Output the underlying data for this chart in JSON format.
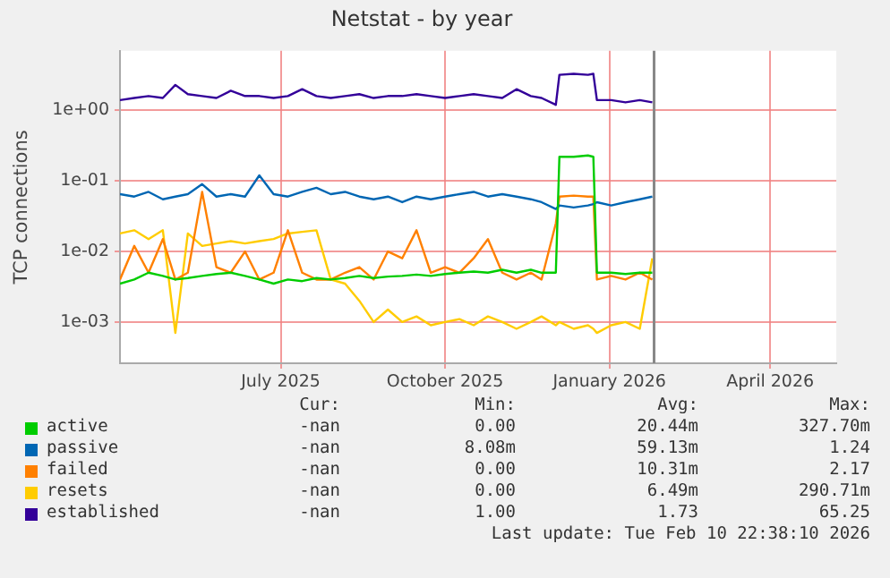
{
  "chart_data": {
    "type": "line",
    "title": "Netstat - by year",
    "ylabel": "TCP connections",
    "log": "y",
    "grid": true,
    "legend": "bottom",
    "marker": "none",
    "line_style": "solid",
    "ylim": [
      0.00026,
      7
    ],
    "yticks": [
      {
        "value": 1,
        "label": "1e+00"
      },
      {
        "value": 0.1,
        "label": "1e-01"
      },
      {
        "value": 0.01,
        "label": "1e-02"
      },
      {
        "value": 0.001,
        "label": "1e-03"
      }
    ],
    "xlim": [
      "2025-04-02",
      "2026-05-08"
    ],
    "xticks": [
      {
        "value": "2025-07-01",
        "label": "July 2025"
      },
      {
        "value": "2025-10-01",
        "label": "October 2025"
      },
      {
        "value": "2026-01-01",
        "label": "January 2026"
      },
      {
        "value": "2026-04-01",
        "label": "April 2026"
      }
    ],
    "x": [
      "2025-04-02",
      "2025-04-10",
      "2025-04-18",
      "2025-04-26",
      "2025-05-03",
      "2025-05-10",
      "2025-05-18",
      "2025-05-26",
      "2025-06-03",
      "2025-06-11",
      "2025-06-19",
      "2025-06-27",
      "2025-07-05",
      "2025-07-13",
      "2025-07-21",
      "2025-07-29",
      "2025-08-06",
      "2025-08-14",
      "2025-08-22",
      "2025-08-30",
      "2025-09-07",
      "2025-09-15",
      "2025-09-23",
      "2025-10-01",
      "2025-10-09",
      "2025-10-17",
      "2025-10-25",
      "2025-11-02",
      "2025-11-10",
      "2025-11-18",
      "2025-11-24",
      "2025-12-02",
      "2025-12-04",
      "2025-12-12",
      "2025-12-20",
      "2025-12-23",
      "2025-12-25",
      "2026-01-02",
      "2026-01-10",
      "2026-01-18",
      "2026-01-25"
    ],
    "series": [
      {
        "name": "active",
        "color": "#00cc00",
        "values": [
          0.0035,
          0.004,
          0.005,
          0.0045,
          0.004,
          0.0042,
          0.0045,
          0.0048,
          0.005,
          0.0045,
          0.004,
          0.0035,
          0.004,
          0.0038,
          0.0042,
          0.004,
          0.0042,
          0.0045,
          0.0042,
          0.0044,
          0.0045,
          0.0047,
          0.0045,
          0.0048,
          0.005,
          0.0052,
          0.005,
          0.0055,
          0.005,
          0.0055,
          0.005,
          0.005,
          0.22,
          0.22,
          0.23,
          0.22,
          0.005,
          0.005,
          0.0048,
          0.005,
          0.005
        ]
      },
      {
        "name": "passive",
        "color": "#0066b3",
        "values": [
          0.065,
          0.06,
          0.07,
          0.055,
          0.06,
          0.065,
          0.09,
          0.06,
          0.065,
          0.06,
          0.12,
          0.065,
          0.06,
          0.07,
          0.08,
          0.065,
          0.07,
          0.06,
          0.055,
          0.06,
          0.05,
          0.06,
          0.055,
          0.06,
          0.065,
          0.07,
          0.06,
          0.065,
          0.06,
          0.055,
          0.05,
          0.04,
          0.045,
          0.042,
          0.045,
          0.047,
          0.05,
          0.045,
          0.05,
          0.055,
          0.06
        ]
      },
      {
        "name": "failed",
        "color": "#ff8000",
        "values": [
          0.004,
          0.012,
          0.005,
          0.015,
          0.004,
          0.005,
          0.07,
          0.006,
          0.005,
          0.01,
          0.004,
          0.005,
          0.02,
          0.005,
          0.004,
          0.004,
          0.005,
          0.006,
          0.004,
          0.01,
          0.008,
          0.02,
          0.005,
          0.006,
          0.005,
          0.008,
          0.015,
          0.005,
          0.004,
          0.005,
          0.004,
          0.025,
          0.06,
          0.062,
          0.06,
          0.06,
          0.004,
          0.0045,
          0.004,
          0.005,
          0.004
        ]
      },
      {
        "name": "resets",
        "color": "#ffcc00",
        "values": [
          0.018,
          0.02,
          0.015,
          0.02,
          0.0007,
          0.018,
          0.012,
          0.013,
          0.014,
          0.013,
          0.014,
          0.015,
          0.018,
          0.019,
          0.02,
          0.004,
          0.0035,
          0.002,
          0.001,
          0.0015,
          0.001,
          0.0012,
          0.0009,
          0.001,
          0.0011,
          0.0009,
          0.0012,
          0.001,
          0.0008,
          0.001,
          0.0012,
          0.0009,
          0.001,
          0.0008,
          0.0009,
          0.0008,
          0.0007,
          0.0009,
          0.001,
          0.0008,
          0.008
        ]
      },
      {
        "name": "established",
        "color": "#330099",
        "values": [
          1.4,
          1.5,
          1.6,
          1.5,
          2.3,
          1.7,
          1.6,
          1.5,
          1.9,
          1.6,
          1.6,
          1.5,
          1.6,
          2.0,
          1.6,
          1.5,
          1.6,
          1.7,
          1.5,
          1.6,
          1.6,
          1.7,
          1.6,
          1.5,
          1.6,
          1.7,
          1.6,
          1.5,
          2.0,
          1.6,
          1.5,
          1.2,
          3.2,
          3.3,
          3.2,
          3.3,
          1.4,
          1.4,
          1.3,
          1.4,
          1.3
        ]
      }
    ],
    "ref_lines": [
      {
        "axis": "x",
        "value": "2026-01-26",
        "color": "#888888"
      }
    ],
    "annotations": [
      "Cur:",
      "Min:",
      "Avg:",
      "Max:",
      "-nan",
      "0.00",
      "20.44m",
      "327.70m",
      "-nan",
      "8.08m",
      "59.13m",
      "1.24",
      "-nan",
      "0.00",
      "10.31m",
      "2.17",
      "-nan",
      "0.00",
      "6.49m",
      "290.71m",
      "-nan",
      "1.00",
      "1.73",
      "65.25",
      "Last update: Tue Feb 10 22:38:10 2026"
    ]
  }
}
